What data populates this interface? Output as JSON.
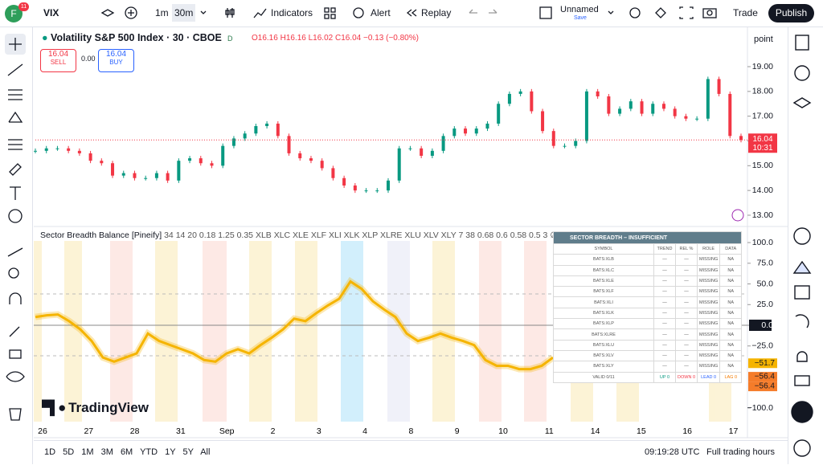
{
  "toolbar": {
    "avatar": "F",
    "badge": "11",
    "symbol": "VIX",
    "intervals": [
      "1m",
      "30m"
    ],
    "indicators": "Indicators",
    "alert": "Alert",
    "replay": "Replay",
    "layout_name": "Unnamed",
    "layout_status": "Save",
    "trade": "Trade",
    "publish": "Publish"
  },
  "legend": {
    "title": "Volatility S&P 500 Index · 30 · CBOE",
    "flag": "D",
    "ohlc": [
      "O16.16",
      "H16.16",
      "L16.02",
      "C16.04"
    ],
    "change": "−0.13 (−0.80%)",
    "sell_price": "16.04",
    "sell": "SELL",
    "spread": "0.00",
    "buy_price": "16.04",
    "buy": "BUY",
    "scale_mode": "point"
  },
  "chart_data": [
    {
      "type": "candlestick",
      "up_color": "#089981",
      "down_color": "#f23645",
      "values": [
        15.6,
        15.7,
        15.7,
        15.6,
        15.5,
        15.2,
        15.1,
        14.6,
        14.7,
        14.5,
        14.5,
        14.7,
        14.4,
        15.2,
        15.3,
        15.1,
        15.0,
        15.8,
        16.1,
        16.3,
        16.6,
        16.7,
        16.2,
        15.5,
        15.3,
        15.2,
        14.9,
        14.5,
        14.2,
        14.0,
        14.0,
        14.0,
        14.4,
        15.7,
        15.7,
        15.4,
        15.6,
        16.2,
        16.5,
        16.3,
        16.5,
        16.7,
        17.5,
        17.9,
        18.0,
        17.2,
        16.4,
        15.8,
        15.8,
        16.0,
        18.0,
        17.8,
        17.1,
        17.3,
        17.6,
        17.1,
        17.5,
        17.3,
        17.0,
        16.9,
        16.9,
        18.5,
        17.9,
        16.2,
        16.04
      ],
      "ylim": [
        12.61,
        20.46
      ],
      "yticks": [
        {
          "value": 13,
          "label": "13.00"
        },
        {
          "value": 14,
          "label": "14.00"
        },
        {
          "value": 15,
          "label": "15.00"
        },
        {
          "value": 16,
          "label": "16.00"
        },
        {
          "value": 17,
          "label": "17.00"
        },
        {
          "value": 18,
          "label": "18.00"
        },
        {
          "value": 19,
          "label": "19.00"
        }
      ],
      "last_price": {
        "value": 16.04,
        "label": "16.04"
      },
      "countdown": "10:31"
    },
    {
      "type": "line",
      "title": "Sector Breadth Balance [Pineify]",
      "params": "34 14 20 0.18 1.25 0.35 XLB XLC XLE XLF XLI XLK XLP XLRE XLU XLV XLY 7 38 0.68 0.6 0.58 0.5 3 ∅ ∅ ∅ 0.0",
      "color": "#f5b400",
      "values": [
        10,
        12,
        13,
        5,
        -5,
        -19,
        -39,
        -44,
        -39,
        -34,
        -10,
        -19,
        -24,
        -29,
        -34,
        -42,
        -44,
        -34,
        -29,
        -34,
        -24,
        -15,
        -5,
        8,
        5,
        15,
        24,
        32,
        53,
        44,
        29,
        19,
        10,
        -10,
        -19,
        -15,
        -10,
        -15,
        -19,
        -24,
        -42,
        -49,
        -49,
        -53,
        -53,
        -49,
        -39
      ],
      "ylim": [
        -116.5,
        114.6
      ],
      "yticks": [
        {
          "value": 100,
          "label": "100.0"
        },
        {
          "value": 75,
          "label": "75.0"
        },
        {
          "value": 50,
          "label": "50.0"
        },
        {
          "value": 25,
          "label": "25.0"
        },
        {
          "value": 0,
          "label": "0.0"
        },
        {
          "value": -25,
          "label": "−25.0"
        },
        {
          "value": -100,
          "label": "−100.0"
        }
      ],
      "markers": [
        {
          "value": -51.7,
          "label": "−51.7",
          "color": "#f5b400"
        },
        {
          "value": -56.4,
          "label": "−56.4",
          "color": "#f57c2a"
        },
        {
          "value": -56.4,
          "label": "−56.4",
          "color": "#f57c2a"
        }
      ]
    }
  ],
  "time_axis": [
    "26",
    "27",
    "28",
    "31",
    "Sep",
    "2",
    "3",
    "4",
    "8",
    "9",
    "10",
    "11",
    "14",
    "15",
    "16",
    "17"
  ],
  "table": {
    "title": "SECTOR BREADTH – INSUFFICIENT",
    "columns": [
      "SYMBOL",
      "TREND",
      "REL %",
      "ROLE",
      "DATA"
    ],
    "rows": [
      [
        "BATS:XLB",
        "—",
        "—",
        "MISSING",
        "NA"
      ],
      [
        "BATS:XLC",
        "—",
        "—",
        "MISSING",
        "NA"
      ],
      [
        "BATS:XLE",
        "—",
        "—",
        "MISSING",
        "NA"
      ],
      [
        "BATS:XLF",
        "—",
        "—",
        "MISSING",
        "NA"
      ],
      [
        "BATS:XLI",
        "—",
        "—",
        "MISSING",
        "NA"
      ],
      [
        "BATS:XLK",
        "—",
        "—",
        "MISSING",
        "NA"
      ],
      [
        "BATS:XLP",
        "—",
        "—",
        "MISSING",
        "NA"
      ],
      [
        "BATS:XLRE",
        "—",
        "—",
        "MISSING",
        "NA"
      ],
      [
        "BATS:XLU",
        "—",
        "—",
        "MISSING",
        "NA"
      ],
      [
        "BATS:XLV",
        "—",
        "—",
        "MISSING",
        "NA"
      ],
      [
        "BATS:XLY",
        "—",
        "—",
        "MISSING",
        "NA"
      ]
    ],
    "footer": [
      "VALID 0/11",
      "UP 0",
      "DOWN 0",
      "LEAD 0",
      "LAG 0"
    ]
  },
  "watermark": "TradingView",
  "bottom": {
    "ranges": [
      "1D",
      "5D",
      "1M",
      "3M",
      "6M",
      "YTD",
      "1Y",
      "5Y",
      "All"
    ],
    "clock": "09:19:28 UTC",
    "session": "Full trading hours"
  }
}
